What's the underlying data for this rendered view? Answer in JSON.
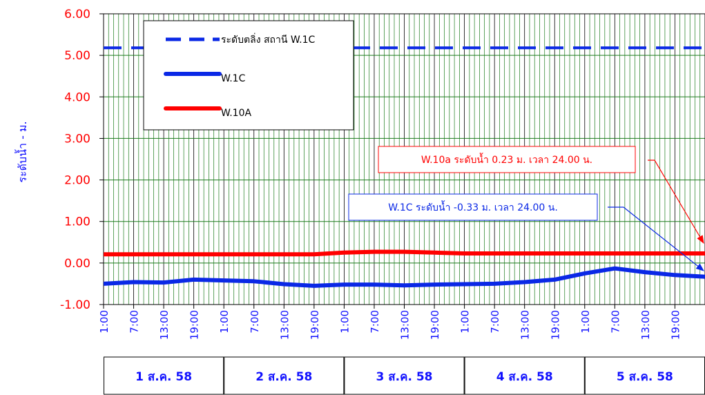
{
  "chart_data": {
    "type": "line",
    "ylabel": "ระดับน้ำ - ม.",
    "ylim": [
      -1.0,
      6.0
    ],
    "yticks": [
      "-1.00",
      "0.00",
      "1.00",
      "2.00",
      "3.00",
      "4.00",
      "5.00",
      "6.00"
    ],
    "hours_total": 120,
    "xtick_labels": [
      "1:00",
      "7:00",
      "13:00",
      "19:00",
      "1:00",
      "7:00",
      "13:00",
      "19:00",
      "1:00",
      "7:00",
      "13:00",
      "19:00",
      "1:00",
      "7:00",
      "13:00",
      "19:00",
      "1:00",
      "7:00",
      "13:00",
      "19:00"
    ],
    "days": [
      "1 ส.ค. 58",
      "2 ส.ค. 58",
      "3 ส.ค. 58",
      "4 ส.ค. 58",
      "5 ส.ค. 58"
    ],
    "grid": true,
    "legend_position": "top-left",
    "series": [
      {
        "name": "ระดับตลิ่ง สถานี W.1C",
        "color": "#0a28e6",
        "style": "dashed",
        "hours": [
          0,
          120
        ],
        "values": [
          5.18,
          5.18
        ]
      },
      {
        "name": "W.1C",
        "color": "#0a28e6",
        "style": "solid",
        "hours": [
          0,
          6,
          12,
          18,
          24,
          30,
          36,
          42,
          48,
          54,
          60,
          66,
          72,
          78,
          84,
          90,
          96,
          102,
          108,
          114,
          120
        ],
        "values": [
          -0.5,
          -0.46,
          -0.47,
          -0.4,
          -0.42,
          -0.44,
          -0.51,
          -0.55,
          -0.52,
          -0.52,
          -0.54,
          -0.52,
          -0.51,
          -0.5,
          -0.46,
          -0.4,
          -0.25,
          -0.13,
          -0.22,
          -0.29,
          -0.33
        ]
      },
      {
        "name": "W.10A",
        "color": "#ff0000",
        "style": "solid",
        "hours": [
          0,
          12,
          24,
          36,
          42,
          48,
          54,
          60,
          66,
          72,
          84,
          96,
          108,
          120
        ],
        "values": [
          0.21,
          0.21,
          0.21,
          0.21,
          0.21,
          0.25,
          0.27,
          0.27,
          0.25,
          0.23,
          0.23,
          0.23,
          0.23,
          0.23
        ]
      }
    ],
    "annotations": [
      {
        "text": "W.10a ระดับน้ำ 0.23 ม. เวลา 24.00 น.",
        "color": "#ff0000"
      },
      {
        "text": "W.1C ระดับน้ำ -0.33 ม. เวลา 24.00 น.",
        "color": "#0a28e6"
      }
    ]
  }
}
